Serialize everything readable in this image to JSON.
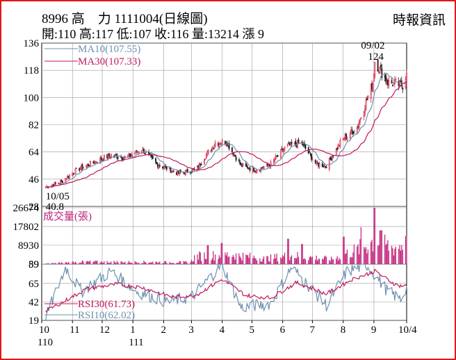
{
  "header": {
    "title": "8996 高　力 1111004(日線圖)",
    "stats": "開:110 高:117 低:107 收:116 量:13214 漲 9",
    "source": "時報資訊"
  },
  "colors": {
    "frame": "#e0161b",
    "up": "#d81b3c",
    "down": "#222222",
    "ma10": "#6d8fb0",
    "ma30": "#c0185a",
    "vol": "#c01e78",
    "rsi30": "#c0185a",
    "rsi10": "#6d8fb0",
    "grid": "#999999"
  },
  "chart_data": [
    {
      "type": "candlestick",
      "title": "8996 高力 日線圖",
      "yticks": [
        28,
        46,
        64,
        82,
        100,
        118,
        136
      ],
      "ylim": [
        28,
        136
      ],
      "legend": [
        {
          "label": "MA10(107.55)",
          "series": "ma10"
        },
        {
          "label": "MA30(107.33)",
          "series": "ma30"
        }
      ],
      "annotations": [
        {
          "text": "09/02",
          "x": "2022-09-02"
        },
        {
          "text": "124",
          "x": "2022-09-02",
          "value": 124
        },
        {
          "text": "10/05",
          "x": "2021-10-05"
        },
        {
          "text": "40.8",
          "x": "2021-10-05",
          "value": 40.8
        }
      ],
      "anchors": [
        [
          "2021-10-05",
          40.8
        ],
        [
          "2021-10-20",
          44
        ],
        [
          "2021-11-05",
          52
        ],
        [
          "2021-11-25",
          58
        ],
        [
          "2021-12-10",
          62
        ],
        [
          "2021-12-25",
          60
        ],
        [
          "2022-01-10",
          66
        ],
        [
          "2022-01-25",
          56
        ],
        [
          "2022-02-15",
          50
        ],
        [
          "2022-03-05",
          52
        ],
        [
          "2022-03-25",
          70
        ],
        [
          "2022-04-05",
          71
        ],
        [
          "2022-04-20",
          55
        ],
        [
          "2022-05-05",
          52
        ],
        [
          "2022-05-20",
          56
        ],
        [
          "2022-06-05",
          68
        ],
        [
          "2022-06-20",
          70
        ],
        [
          "2022-07-05",
          56
        ],
        [
          "2022-07-15",
          55
        ],
        [
          "2022-07-31",
          72
        ],
        [
          "2022-08-15",
          80
        ],
        [
          "2022-08-31",
          110
        ],
        [
          "2022-09-02",
          124
        ],
        [
          "2022-09-15",
          110
        ],
        [
          "2022-09-30",
          108
        ],
        [
          "2022-10-04",
          116
        ]
      ]
    },
    {
      "type": "bar",
      "title": "成交量(張)",
      "yticks": [
        59,
        8930,
        17802,
        26674
      ],
      "ylim": [
        0,
        26674
      ],
      "anchors": [
        [
          "2021-10-05",
          300
        ],
        [
          "2021-11-10",
          1500
        ],
        [
          "2022-02-28",
          1200
        ],
        [
          "2022-03-05",
          5000
        ],
        [
          "2022-04-10",
          6000
        ],
        [
          "2022-05-15",
          3500
        ],
        [
          "2022-06-10",
          5500
        ],
        [
          "2022-07-20",
          3000
        ],
        [
          "2022-08-15",
          9000
        ],
        [
          "2022-09-02",
          15000
        ],
        [
          "2022-09-20",
          10000
        ],
        [
          "2022-10-04",
          13214
        ]
      ],
      "peaks": [
        [
          "2022-08-01",
          13000
        ],
        [
          "2022-08-20",
          17500
        ],
        [
          "2022-09-02",
          26674
        ],
        [
          "2022-09-08",
          16000
        ],
        [
          "2022-06-06",
          12000
        ],
        [
          "2022-06-20",
          9500
        ],
        [
          "2022-03-18",
          9000
        ],
        [
          "2022-04-01",
          10000
        ],
        [
          "2022-10-04",
          13214
        ]
      ]
    },
    {
      "type": "line",
      "title": "RSI",
      "yticks": [
        19,
        42,
        65,
        89
      ],
      "ylim": [
        19,
        89
      ],
      "legend": [
        {
          "label": "RSI30(61.73)",
          "series": "rsi30"
        },
        {
          "label": "RSI10(62.02)",
          "series": "rsi10"
        }
      ],
      "rsi30_anchors": [
        [
          "2021-10-05",
          30
        ],
        [
          "2021-11-15",
          58
        ],
        [
          "2021-12-15",
          64
        ],
        [
          "2022-01-10",
          60
        ],
        [
          "2022-02-10",
          48
        ],
        [
          "2022-03-05",
          50
        ],
        [
          "2022-04-01",
          70
        ],
        [
          "2022-04-25",
          50
        ],
        [
          "2022-05-20",
          47
        ],
        [
          "2022-06-15",
          66
        ],
        [
          "2022-07-15",
          52
        ],
        [
          "2022-08-10",
          70
        ],
        [
          "2022-09-02",
          80
        ],
        [
          "2022-09-25",
          62
        ],
        [
          "2022-10-04",
          61.73
        ]
      ],
      "rsi10_anchors": [
        [
          "2021-10-05",
          22
        ],
        [
          "2021-10-25",
          85
        ],
        [
          "2021-11-10",
          55
        ],
        [
          "2021-12-10",
          80
        ],
        [
          "2022-01-05",
          55
        ],
        [
          "2022-02-05",
          42
        ],
        [
          "2022-03-01",
          48
        ],
        [
          "2022-04-01",
          88
        ],
        [
          "2022-04-20",
          35
        ],
        [
          "2022-05-20",
          40
        ],
        [
          "2022-06-10",
          85
        ],
        [
          "2022-07-15",
          38
        ],
        [
          "2022-08-05",
          80
        ],
        [
          "2022-08-25",
          88
        ],
        [
          "2022-09-15",
          55
        ],
        [
          "2022-09-28",
          45
        ],
        [
          "2022-10-04",
          62.02
        ]
      ]
    }
  ],
  "xaxis": {
    "ticks": [
      {
        "label": "10",
        "date": "2021-10-01"
      },
      {
        "label": "11",
        "date": "2021-11-01"
      },
      {
        "label": "12",
        "date": "2021-12-01"
      },
      {
        "label": "1",
        "date": "2022-01-01"
      },
      {
        "label": "2",
        "date": "2022-02-01"
      },
      {
        "label": "3",
        "date": "2022-03-01"
      },
      {
        "label": "4",
        "date": "2022-04-01"
      },
      {
        "label": "5",
        "date": "2022-05-01"
      },
      {
        "label": "6",
        "date": "2022-06-01"
      },
      {
        "label": "7",
        "date": "2022-07-01"
      },
      {
        "label": "8",
        "date": "2022-08-01"
      },
      {
        "label": "9",
        "date": "2022-09-01"
      },
      {
        "label": "10/4",
        "date": "2022-10-04"
      }
    ],
    "years": [
      {
        "label": "110",
        "date": "2021-10-01"
      },
      {
        "label": "111",
        "date": "2022-01-01"
      }
    ],
    "start": "2021-10-01",
    "end": "2022-10-04"
  }
}
